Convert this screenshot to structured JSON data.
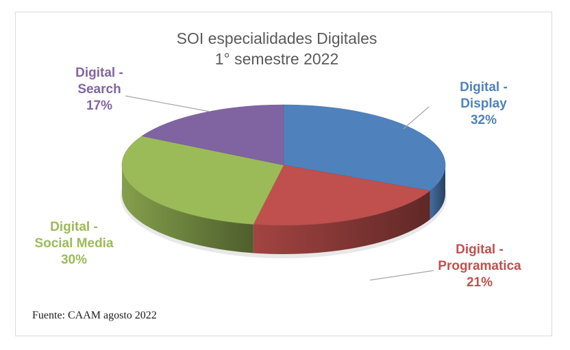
{
  "chart_data": {
    "type": "pie",
    "title": "SOI especialidades Digitales",
    "subtitle": "1° semestre 2022",
    "slices": [
      {
        "name_line1": "Digital -",
        "name_line2": "Display",
        "value": 32,
        "label": "32%",
        "color": "#4f81bd"
      },
      {
        "name_line1": "Digital -",
        "name_line2": "Programatica",
        "value": 21,
        "label": "21%",
        "color": "#c0504d"
      },
      {
        "name_line1": "Digital -",
        "name_line2": "Social Media",
        "value": 30,
        "label": "30%",
        "color": "#9bbb59"
      },
      {
        "name_line1": "Digital -",
        "name_line2": "Search",
        "value": 17,
        "label": "17%",
        "color": "#8064a2"
      }
    ]
  },
  "source": "Fuente: CAAM agosto 2022"
}
